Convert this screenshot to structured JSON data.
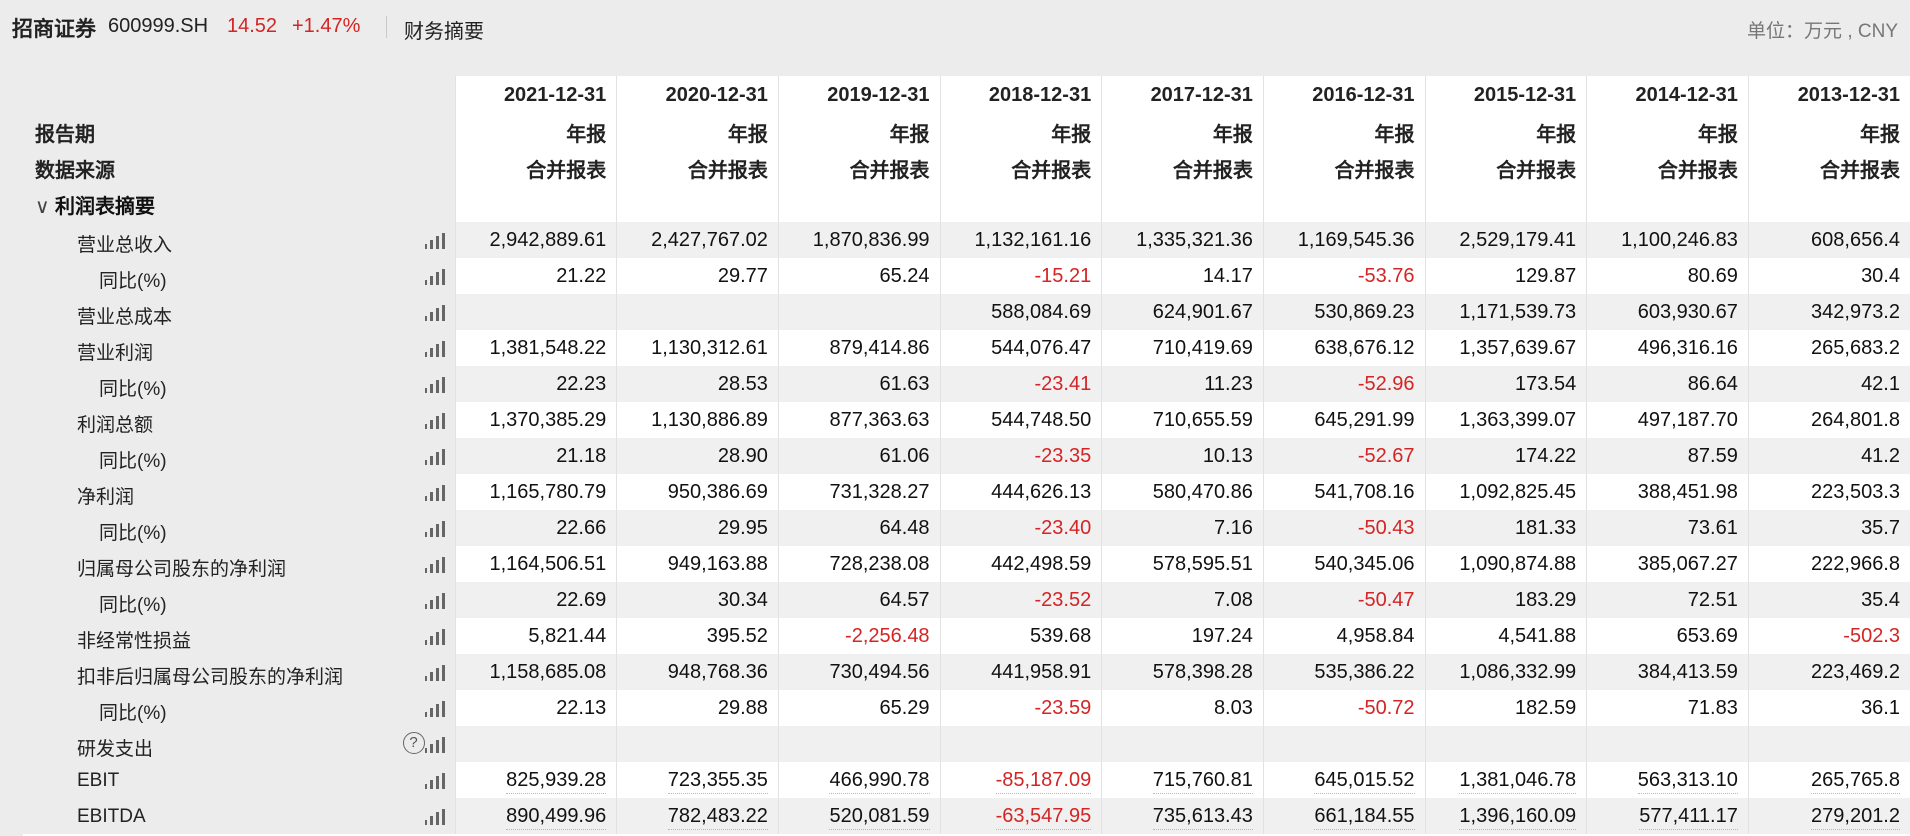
{
  "header": {
    "stock_name": "招商证券",
    "stock_code": "600999.SH",
    "price": "14.52",
    "change": "+1.47%",
    "tab": "财务摘要",
    "unit": "单位：万元 , CNY"
  },
  "table": {
    "header_labels": {
      "period": "报告期",
      "source": "数据来源"
    },
    "columns": [
      {
        "date": "2021-12-31",
        "type": "年报",
        "source": "合并报表"
      },
      {
        "date": "2020-12-31",
        "type": "年报",
        "source": "合并报表"
      },
      {
        "date": "2019-12-31",
        "type": "年报",
        "source": "合并报表"
      },
      {
        "date": "2018-12-31",
        "type": "年报",
        "source": "合并报表"
      },
      {
        "date": "2017-12-31",
        "type": "年报",
        "source": "合并报表"
      },
      {
        "date": "2016-12-31",
        "type": "年报",
        "source": "合并报表"
      },
      {
        "date": "2015-12-31",
        "type": "年报",
        "source": "合并报表"
      },
      {
        "date": "2014-12-31",
        "type": "年报",
        "source": "合并报表"
      },
      {
        "date": "2013-12-31",
        "type": "年报",
        "source": "合并报表"
      }
    ],
    "section": "利润表摘要",
    "rows": [
      {
        "label": "营业总收入",
        "level": 1,
        "values": [
          "2,942,889.61",
          "2,427,767.02",
          "1,870,836.99",
          "1,132,161.16",
          "1,335,321.36",
          "1,169,545.36",
          "2,529,179.41",
          "1,100,246.83",
          "608,656.4"
        ]
      },
      {
        "label": "同比(%)",
        "level": 2,
        "values": [
          "21.22",
          "29.77",
          "65.24",
          "-15.21",
          "14.17",
          "-53.76",
          "129.87",
          "80.69",
          "30.4"
        ]
      },
      {
        "label": "营业总成本",
        "level": 1,
        "values": [
          "",
          "",
          "",
          "588,084.69",
          "624,901.67",
          "530,869.23",
          "1,171,539.73",
          "603,930.67",
          "342,973.2"
        ]
      },
      {
        "label": "营业利润",
        "level": 1,
        "values": [
          "1,381,548.22",
          "1,130,312.61",
          "879,414.86",
          "544,076.47",
          "710,419.69",
          "638,676.12",
          "1,357,639.67",
          "496,316.16",
          "265,683.2"
        ]
      },
      {
        "label": "同比(%)",
        "level": 2,
        "values": [
          "22.23",
          "28.53",
          "61.63",
          "-23.41",
          "11.23",
          "-52.96",
          "173.54",
          "86.64",
          "42.1"
        ]
      },
      {
        "label": "利润总额",
        "level": 1,
        "values": [
          "1,370,385.29",
          "1,130,886.89",
          "877,363.63",
          "544,748.50",
          "710,655.59",
          "645,291.99",
          "1,363,399.07",
          "497,187.70",
          "264,801.8"
        ]
      },
      {
        "label": "同比(%)",
        "level": 2,
        "values": [
          "21.18",
          "28.90",
          "61.06",
          "-23.35",
          "10.13",
          "-52.67",
          "174.22",
          "87.59",
          "41.2"
        ]
      },
      {
        "label": "净利润",
        "level": 1,
        "values": [
          "1,165,780.79",
          "950,386.69",
          "731,328.27",
          "444,626.13",
          "580,470.86",
          "541,708.16",
          "1,092,825.45",
          "388,451.98",
          "223,503.3"
        ]
      },
      {
        "label": "同比(%)",
        "level": 2,
        "values": [
          "22.66",
          "29.95",
          "64.48",
          "-23.40",
          "7.16",
          "-50.43",
          "181.33",
          "73.61",
          "35.7"
        ]
      },
      {
        "label": "归属母公司股东的净利润",
        "level": 1,
        "values": [
          "1,164,506.51",
          "949,163.88",
          "728,238.08",
          "442,498.59",
          "578,595.51",
          "540,345.06",
          "1,090,874.88",
          "385,067.27",
          "222,966.8"
        ]
      },
      {
        "label": "同比(%)",
        "level": 2,
        "values": [
          "22.69",
          "30.34",
          "64.57",
          "-23.52",
          "7.08",
          "-50.47",
          "183.29",
          "72.51",
          "35.4"
        ]
      },
      {
        "label": "非经常性损益",
        "level": 1,
        "values": [
          "5,821.44",
          "395.52",
          "-2,256.48",
          "539.68",
          "197.24",
          "4,958.84",
          "4,541.88",
          "653.69",
          "-502.3"
        ]
      },
      {
        "label": "扣非后归属母公司股东的净利润",
        "level": 1,
        "values": [
          "1,158,685.08",
          "948,768.36",
          "730,494.56",
          "441,958.91",
          "578,398.28",
          "535,386.22",
          "1,086,332.99",
          "384,413.59",
          "223,469.2"
        ]
      },
      {
        "label": "同比(%)",
        "level": 2,
        "values": [
          "22.13",
          "29.88",
          "65.29",
          "-23.59",
          "8.03",
          "-50.72",
          "182.59",
          "71.83",
          "36.1"
        ]
      },
      {
        "label": "研发支出",
        "level": 1,
        "help": true,
        "values": [
          "",
          "",
          "",
          "",
          "",
          "",
          "",
          "",
          ""
        ]
      },
      {
        "label": "EBIT",
        "level": 1,
        "values": [
          "825,939.28",
          "723,355.35",
          "466,990.78",
          "-85,187.09",
          "715,760.81",
          "645,015.52",
          "1,381,046.78",
          "563,313.10",
          "265,765.8"
        ]
      },
      {
        "label": "EBITDA",
        "level": 1,
        "values": [
          "890,499.96",
          "782,483.22",
          "520,081.59",
          "-63,547.95",
          "735,613.43",
          "661,184.55",
          "1,396,160.09",
          "577,411.17",
          "279,201.2"
        ]
      }
    ]
  },
  "icons": {
    "chart": "bar-chart-icon",
    "help": "question-icon",
    "collapse": "chevron-down-icon"
  },
  "colors": {
    "negative": "#d42424",
    "positive_change": "#d42424"
  }
}
